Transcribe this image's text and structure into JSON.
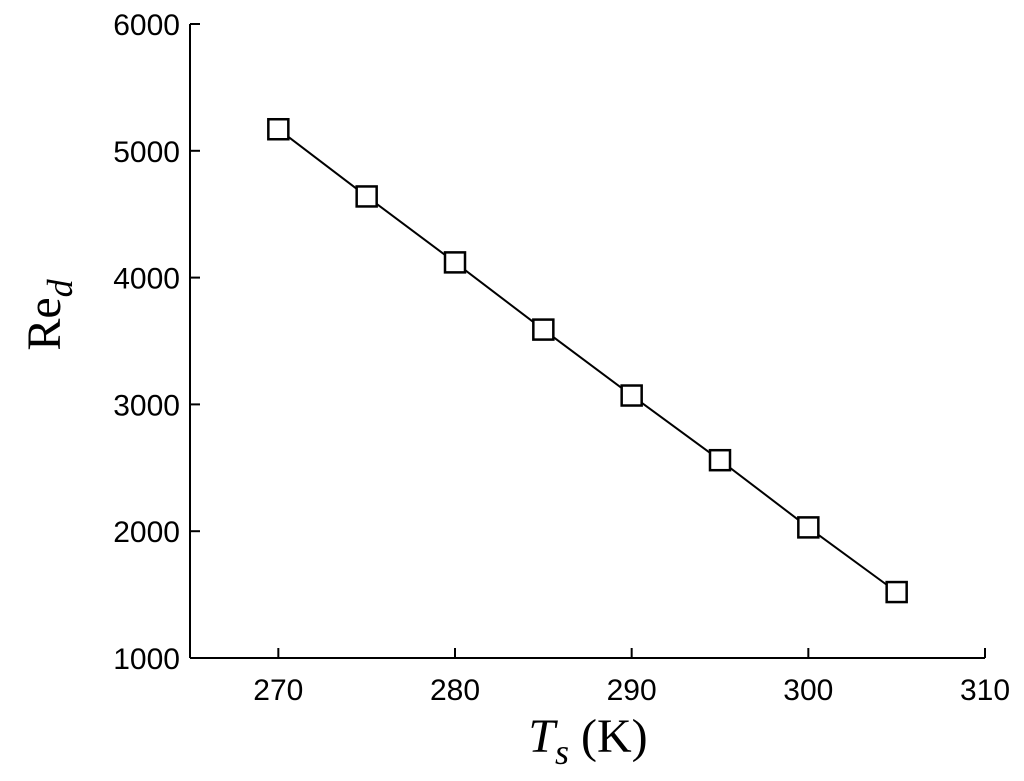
{
  "chart_data": {
    "type": "line",
    "xlabel": {
      "main": "T",
      "sub": "s",
      "unit": "(K)"
    },
    "ylabel": {
      "main": "Re",
      "sub": "d"
    },
    "xlim": [
      265,
      310
    ],
    "ylim": [
      1000,
      6000
    ],
    "x_ticks": [
      270,
      280,
      290,
      300,
      310
    ],
    "x_tick_labels": [
      "270",
      "280",
      "290",
      "300",
      "310"
    ],
    "y_ticks": [
      1000,
      2000,
      3000,
      4000,
      5000,
      6000
    ],
    "y_tick_labels": [
      "1000",
      "2000",
      "3000",
      "4000",
      "5000",
      "6000"
    ],
    "grid": false,
    "box": false,
    "series": [
      {
        "marker": "square",
        "color": "#000000",
        "x": [
          270,
          275,
          280,
          285,
          290,
          295,
          300,
          305
        ],
        "y": [
          5170,
          4640,
          4120,
          3590,
          3070,
          2560,
          2030,
          1520
        ]
      }
    ]
  }
}
